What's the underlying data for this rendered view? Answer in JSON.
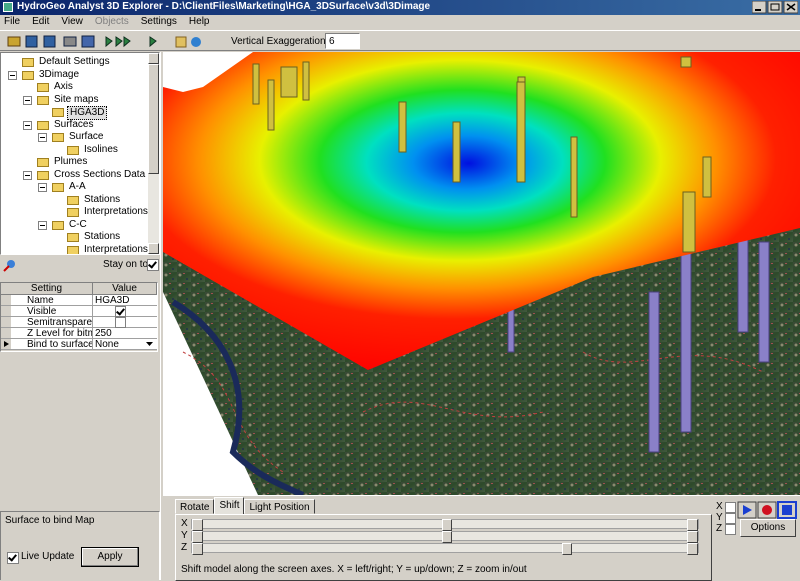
{
  "window": {
    "title": "HydroGeo Analyst 3D Explorer - D:\\ClientFiles\\Marketing\\HGA_3DSurface\\v3d\\3Dimage"
  },
  "menu": [
    {
      "label": "File",
      "enabled": true
    },
    {
      "label": "Edit",
      "enabled": true
    },
    {
      "label": "View",
      "enabled": true
    },
    {
      "label": "Objects",
      "enabled": false
    },
    {
      "label": "Settings",
      "enabled": true
    },
    {
      "label": "Help",
      "enabled": true
    }
  ],
  "toolbar": {
    "vertical_exaggeration_label": "Vertical Exaggeration",
    "vertical_exaggeration_value": "6"
  },
  "tree": [
    {
      "label": "Default Settings"
    },
    {
      "label": "3Dimage",
      "children": [
        {
          "label": "Axis"
        },
        {
          "label": "Site maps",
          "children": [
            {
              "label": "HGA3D",
              "selected": true
            }
          ]
        },
        {
          "label": "Surfaces",
          "children": [
            {
              "label": "Surface",
              "children": [
                {
                  "label": "Isolines"
                }
              ]
            }
          ]
        },
        {
          "label": "Plumes"
        },
        {
          "label": "Cross Sections Data",
          "children": [
            {
              "label": "A-A",
              "children": [
                {
                  "label": "Stations"
                },
                {
                  "label": "Interpretations"
                }
              ]
            },
            {
              "label": "C-C",
              "children": [
                {
                  "label": "Stations"
                },
                {
                  "label": "Interpretations"
                }
              ]
            }
          ]
        }
      ]
    }
  ],
  "stay_on_top": {
    "label": "Stay on top",
    "checked": true
  },
  "properties": {
    "headers": [
      "Setting",
      "Value"
    ],
    "rows": [
      {
        "setting": "Name",
        "value": "HGA3D"
      },
      {
        "setting": "Visible",
        "checked": true
      },
      {
        "setting": "Semitransparent",
        "checked": false
      },
      {
        "setting": "Z Level for bitmap",
        "value": "250"
      },
      {
        "setting": "Bind to surface",
        "value": "None",
        "current": true
      }
    ]
  },
  "status": {
    "text": "Surface to bind Map",
    "live_update": {
      "label": "Live Update",
      "checked": true
    },
    "apply": "Apply"
  },
  "controls": {
    "tabs": [
      "Rotate",
      "Shift",
      "Light Position"
    ],
    "active_tab": 1,
    "sliders": [
      "X",
      "Y",
      "Z"
    ],
    "hint": "Shift model along the screen axes. X = left/right; Y = up/down; Z = zoom in/out",
    "axis_checks": [
      "X",
      "Y",
      "Z"
    ],
    "options": "Options"
  }
}
